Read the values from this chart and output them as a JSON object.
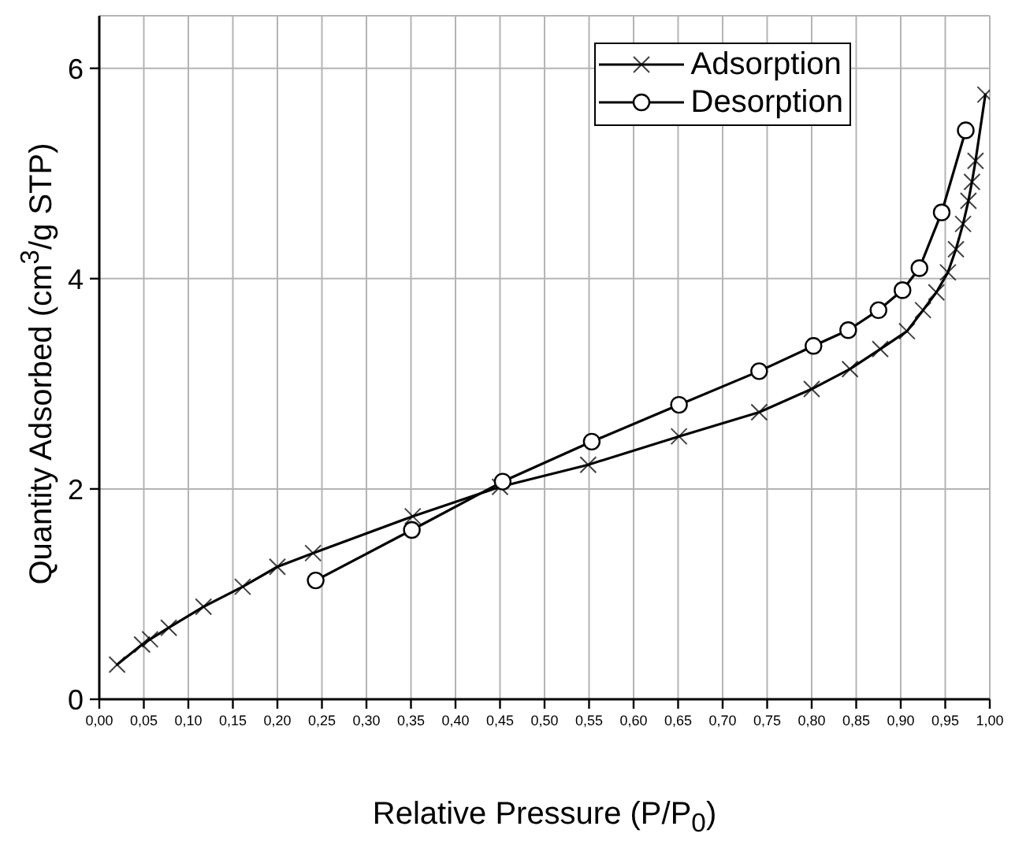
{
  "chart_data": {
    "type": "line",
    "xlabel": "Relative Pressure (P/P$_{0}$)",
    "ylabel": "Quantity Adsorbed (cm$^{3}$/g STP)",
    "xlim": [
      0,
      1
    ],
    "xticks": [
      {
        "value": 0,
        "label": "0,00"
      },
      {
        "value": 0.05,
        "label": "0,05"
      },
      {
        "value": 0.1,
        "label": "0,10"
      },
      {
        "value": 0.15,
        "label": "0,15"
      },
      {
        "value": 0.2,
        "label": "0,20"
      },
      {
        "value": 0.25,
        "label": "0,25"
      },
      {
        "value": 0.3,
        "label": "0,30"
      },
      {
        "value": 0.35,
        "label": "0,35"
      },
      {
        "value": 0.4,
        "label": "0,40"
      },
      {
        "value": 0.45,
        "label": "0,45"
      },
      {
        "value": 0.5,
        "label": "0,50"
      },
      {
        "value": 0.55,
        "label": "0,55"
      },
      {
        "value": 0.6,
        "label": "0,60"
      },
      {
        "value": 0.65,
        "label": "0,65"
      },
      {
        "value": 0.7,
        "label": "0,70"
      },
      {
        "value": 0.75,
        "label": "0,75"
      },
      {
        "value": 0.8,
        "label": "0,80"
      },
      {
        "value": 0.85,
        "label": "0,85"
      },
      {
        "value": 0.9,
        "label": "0,90"
      },
      {
        "value": 0.95,
        "label": "0,95"
      },
      {
        "value": 1,
        "label": "1,00"
      }
    ],
    "ylim": [
      0,
      6.5
    ],
    "yticks": [
      0,
      2,
      4,
      6
    ],
    "grid": true,
    "legend": "top right",
    "line_style": "solid",
    "series": [
      {
        "name": "Adsorption",
        "color": "#000000",
        "marker": "cross",
        "x": [
          0.02,
          0.048,
          0.057,
          0.078,
          0.117,
          0.161,
          0.2,
          0.24,
          0.352,
          0.45,
          0.549,
          0.651,
          0.741,
          0.8,
          0.843,
          0.877,
          0.907,
          0.925,
          0.94,
          0.953,
          0.962,
          0.97,
          0.976,
          0.98,
          0.984,
          0.995
        ],
        "values": [
          0.33,
          0.52,
          0.57,
          0.68,
          0.88,
          1.07,
          1.26,
          1.39,
          1.74,
          2.02,
          2.23,
          2.5,
          2.73,
          2.95,
          3.14,
          3.33,
          3.5,
          3.7,
          3.87,
          4.06,
          4.28,
          4.52,
          4.74,
          4.92,
          5.12,
          5.75
        ]
      },
      {
        "name": "Desorption",
        "color": "#000000",
        "marker": "circle",
        "x": [
          0.243,
          0.351,
          0.453,
          0.553,
          0.651,
          0.741,
          0.802,
          0.841,
          0.875,
          0.902,
          0.921,
          0.946,
          0.973
        ],
        "values": [
          1.13,
          1.61,
          2.07,
          2.45,
          2.8,
          3.12,
          3.36,
          3.51,
          3.7,
          3.89,
          4.1,
          4.63,
          5.41
        ]
      }
    ]
  }
}
